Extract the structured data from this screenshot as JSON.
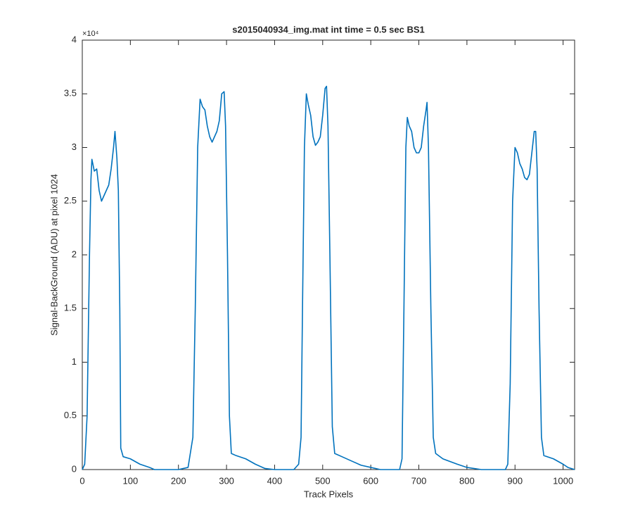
{
  "chart_data": {
    "type": "line",
    "title": "s2015040934_img.mat int time = 0.5 sec   BS1",
    "x_label": "Track Pixels",
    "y_label": "Signal-BackGround (ADU) at pixel 1024",
    "y_exponent_label": "×10⁴",
    "xlim": [
      0,
      1024
    ],
    "xticks": [
      0,
      100,
      200,
      300,
      400,
      500,
      600,
      700,
      800,
      900,
      1000
    ],
    "ylim": [
      0,
      4
    ],
    "yticks": [
      0,
      0.5,
      1,
      1.5,
      2,
      2.5,
      3,
      3.5,
      4
    ],
    "x": [
      0,
      5,
      10,
      15,
      18,
      20,
      25,
      30,
      35,
      40,
      45,
      50,
      55,
      60,
      65,
      68,
      72,
      75,
      78,
      80,
      85,
      100,
      120,
      140,
      150,
      200,
      220,
      230,
      235,
      240,
      245,
      250,
      255,
      260,
      265,
      270,
      275,
      280,
      285,
      290,
      295,
      298,
      302,
      306,
      310,
      320,
      340,
      360,
      380,
      400,
      440,
      450,
      455,
      458,
      462,
      466,
      470,
      475,
      480,
      485,
      490,
      495,
      500,
      505,
      508,
      511,
      515,
      520,
      525,
      540,
      560,
      580,
      600,
      620,
      660,
      665,
      669,
      673,
      676,
      680,
      685,
      690,
      695,
      700,
      705,
      710,
      715,
      717,
      720,
      725,
      730,
      735,
      750,
      780,
      800,
      830,
      880,
      885,
      890,
      895,
      900,
      905,
      910,
      915,
      920,
      925,
      930,
      935,
      940,
      943,
      946,
      950,
      955,
      960,
      980,
      1000,
      1010,
      1024
    ],
    "series": [
      {
        "color": "#0072bd",
        "values": [
          0,
          0.05,
          0.5,
          2.0,
          2.7,
          2.89,
          2.78,
          2.8,
          2.6,
          2.5,
          2.55,
          2.6,
          2.65,
          2.8,
          3.0,
          3.15,
          2.9,
          2.6,
          1.5,
          0.2,
          0.12,
          0.1,
          0.05,
          0.02,
          0,
          0,
          0.02,
          0.3,
          1.5,
          3.0,
          3.45,
          3.38,
          3.35,
          3.2,
          3.1,
          3.05,
          3.1,
          3.15,
          3.25,
          3.5,
          3.52,
          3.2,
          2.0,
          0.5,
          0.15,
          0.13,
          0.1,
          0.05,
          0.01,
          0,
          0,
          0.05,
          0.3,
          1.5,
          3.0,
          3.5,
          3.4,
          3.3,
          3.1,
          3.02,
          3.05,
          3.1,
          3.3,
          3.55,
          3.57,
          3.2,
          2.0,
          0.4,
          0.15,
          0.12,
          0.08,
          0.04,
          0.02,
          0,
          0,
          0.1,
          1.5,
          3.0,
          3.28,
          3.2,
          3.15,
          3.0,
          2.95,
          2.95,
          3.0,
          3.2,
          3.35,
          3.42,
          3.0,
          1.5,
          0.3,
          0.15,
          0.1,
          0.05,
          0.02,
          0,
          0,
          0.05,
          0.8,
          2.5,
          3.0,
          2.95,
          2.85,
          2.8,
          2.72,
          2.7,
          2.75,
          2.95,
          3.15,
          3.15,
          2.8,
          1.5,
          0.3,
          0.13,
          0.1,
          0.05,
          0.02,
          0
        ]
      }
    ]
  }
}
